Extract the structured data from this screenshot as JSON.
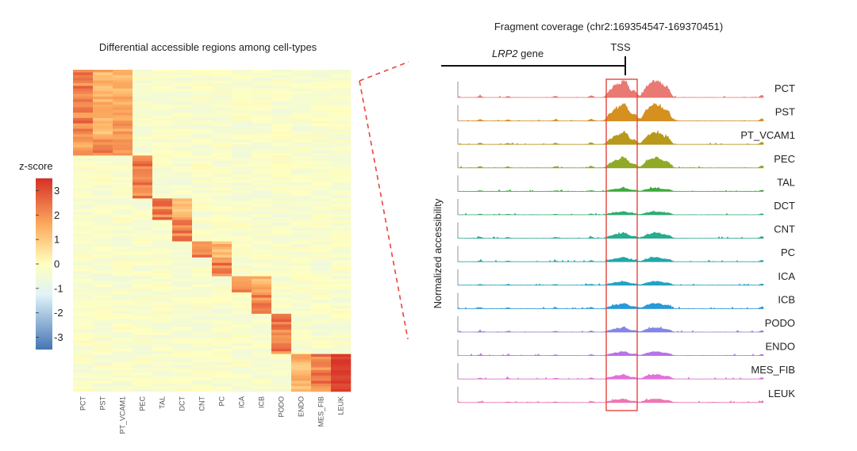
{
  "heatmap": {
    "title": "Differential accessible regions among cell-types",
    "colorbar": {
      "label": "z-score",
      "ticks": [
        "3",
        "2",
        "1",
        "0",
        "-1",
        "-2",
        "-3"
      ],
      "range": [
        -3.5,
        3.5
      ],
      "stops": [
        "#4575b4",
        "#e0f3f8",
        "#ffffbf",
        "#fdae61",
        "#d73027"
      ]
    }
  },
  "tracks": {
    "title": "Fragment coverage (chr2:169354547-169370451)",
    "gene_name": "LRP2",
    "gene_suffix": "gene",
    "tss_label": "TSS",
    "ylabel": "Normalized accessibility",
    "highlight_color": "#e8453c"
  },
  "chart_data": [
    {
      "type": "heatmap",
      "title": "Differential accessible regions among cell-types",
      "columns": [
        "PCT",
        "PST",
        "PT_VCAM1",
        "PEC",
        "TAL",
        "DCT",
        "CNT",
        "PC",
        "ICA",
        "ICB",
        "PODO",
        "ENDO",
        "MES_FIB",
        "LEUK"
      ],
      "row_block_fraction": [
        0.13,
        0.09,
        0.05,
        0.07,
        0.06,
        0.07,
        0.06,
        0.05,
        0.06,
        0.05,
        0.07,
        0.09,
        0.03,
        0.12
      ],
      "block_high_columns": [
        [
          0,
          1,
          2
        ],
        [
          0,
          1
        ],
        [
          1
        ],
        [
          3
        ],
        [
          3
        ],
        [
          4,
          5
        ],
        [
          5
        ],
        [
          6,
          7
        ],
        [
          7
        ],
        [
          8,
          9
        ],
        [
          9
        ],
        [
          10
        ],
        [
          10
        ],
        [
          12,
          11,
          13
        ]
      ],
      "zlim": [
        -3.5,
        3.5
      ],
      "colorbar_label": "z-score"
    },
    {
      "type": "area",
      "title": "Fragment coverage (chr2:169354547-169370451)",
      "region": "chr2:169354547-169370451",
      "ylabel": "Normalized accessibility",
      "highlight": "TSS",
      "tracks": [
        {
          "name": "PCT",
          "color": "#e8736c",
          "scale": 1.0
        },
        {
          "name": "PST",
          "color": "#d38a14",
          "scale": 1.0
        },
        {
          "name": "PT_VCAM1",
          "color": "#b59410",
          "scale": 0.7
        },
        {
          "name": "PEC",
          "color": "#8aa51b",
          "scale": 0.6
        },
        {
          "name": "TAL",
          "color": "#35a535",
          "scale": 0.18
        },
        {
          "name": "DCT",
          "color": "#23a96a",
          "scale": 0.18
        },
        {
          "name": "CNT",
          "color": "#1ba88a",
          "scale": 0.3
        },
        {
          "name": "PC",
          "color": "#17a3a3",
          "scale": 0.25
        },
        {
          "name": "ICA",
          "color": "#179ec0",
          "scale": 0.22
        },
        {
          "name": "ICB",
          "color": "#1d93d6",
          "scale": 0.3
        },
        {
          "name": "PODO",
          "color": "#7d7ee8",
          "scale": 0.25
        },
        {
          "name": "ENDO",
          "color": "#b46ce6",
          "scale": 0.22
        },
        {
          "name": "MES_FIB",
          "color": "#e06ad6",
          "scale": 0.25
        },
        {
          "name": "LEUK",
          "color": "#ee6fb0",
          "scale": 0.2
        }
      ]
    }
  ]
}
